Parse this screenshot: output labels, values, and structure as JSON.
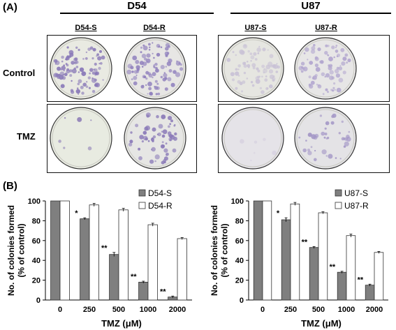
{
  "panel_a": {
    "letter": "(A)",
    "groups": [
      {
        "title": "D54",
        "dishes": [
          "D54-S",
          "D54-R"
        ]
      },
      {
        "title": "U87",
        "dishes": [
          "U87-S",
          "U87-R"
        ]
      }
    ],
    "rows": [
      "Control",
      "TMZ"
    ],
    "plates": [
      {
        "group": 0,
        "row": 0,
        "col": 0,
        "bg": "#e9eae2",
        "colony": "#8a7ab8",
        "density": 0.9
      },
      {
        "group": 0,
        "row": 0,
        "col": 1,
        "bg": "#e7e6e4",
        "colony": "#8f7fbd",
        "density": 0.85
      },
      {
        "group": 0,
        "row": 1,
        "col": 0,
        "bg": "#e8ebe1",
        "colony": "#8f80b8",
        "density": 0.05
      },
      {
        "group": 0,
        "row": 1,
        "col": 1,
        "bg": "#e6e6e4",
        "colony": "#8a7ab8",
        "density": 0.55
      },
      {
        "group": 1,
        "row": 0,
        "col": 0,
        "bg": "#e6e6e1",
        "colony": "#c9c2d6",
        "density": 0.7
      },
      {
        "group": 1,
        "row": 0,
        "col": 1,
        "bg": "#e7e6e6",
        "colony": "#b2a6cf",
        "density": 0.7
      },
      {
        "group": 1,
        "row": 1,
        "col": 0,
        "bg": "#e5e3e8",
        "colony": "#d6d0e0",
        "density": 0.05
      },
      {
        "group": 1,
        "row": 1,
        "col": 1,
        "bg": "#e4e3e6",
        "colony": "#a396c6",
        "density": 0.35
      }
    ]
  },
  "panel_b": {
    "letter": "(B)"
  },
  "chart_data": [
    {
      "type": "bar",
      "categories": [
        "0",
        "250",
        "500",
        "1000",
        "2000"
      ],
      "xlabel": "TMZ (μM)",
      "ylabel": "No. of colonies formed\n(% of control)",
      "ylim": [
        0,
        100
      ],
      "yticks": [
        0,
        20,
        40,
        60,
        80,
        100
      ],
      "legend": "top-right",
      "series": [
        {
          "name": "D54-S",
          "color": "#7f7f7f",
          "values": [
            100,
            82,
            46,
            18,
            3
          ],
          "errors": [
            0,
            1,
            2,
            1,
            1
          ],
          "sig": [
            "",
            "*",
            "**",
            "**",
            "**"
          ]
        },
        {
          "name": "D54-R",
          "color": "#ffffff",
          "values": [
            100,
            96,
            91,
            76,
            62
          ],
          "errors": [
            0,
            1.5,
            1.5,
            1.5,
            1
          ],
          "sig": [
            "",
            "",
            "",
            "",
            ""
          ]
        }
      ]
    },
    {
      "type": "bar",
      "categories": [
        "0",
        "250",
        "500",
        "1000",
        "2000"
      ],
      "xlabel": "TMZ (μM)",
      "ylabel": "No. of colonies formed\n(% of control)",
      "ylim": [
        0,
        100
      ],
      "yticks": [
        0,
        20,
        40,
        60,
        80,
        100
      ],
      "legend": "top-right",
      "series": [
        {
          "name": "U87-S",
          "color": "#7f7f7f",
          "values": [
            100,
            81,
            53,
            28,
            15
          ],
          "errors": [
            0,
            2,
            1,
            1,
            1
          ],
          "sig": [
            "",
            "*",
            "**",
            "**",
            "**"
          ]
        },
        {
          "name": "U87-R",
          "color": "#ffffff",
          "values": [
            100,
            97,
            88,
            65,
            48
          ],
          "errors": [
            0,
            1.5,
            1,
            1.5,
            1
          ],
          "sig": [
            "",
            "",
            "",
            "",
            ""
          ]
        }
      ]
    }
  ]
}
